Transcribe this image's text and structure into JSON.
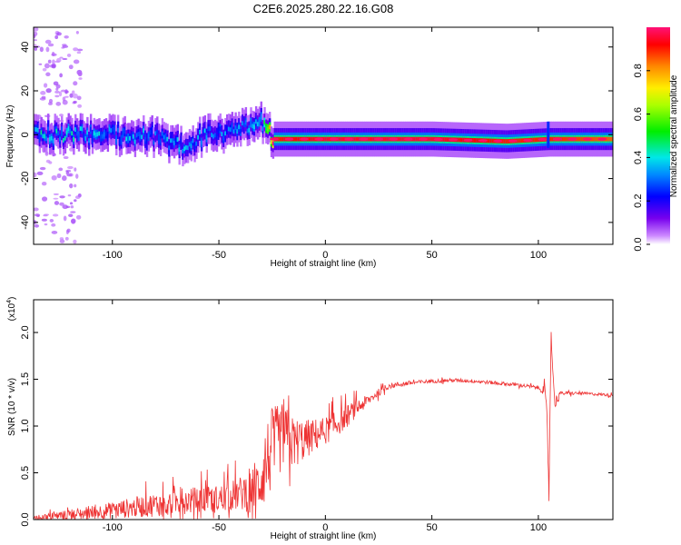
{
  "title": "C2E6.2025.280.22.16.G08",
  "chart_data": [
    {
      "type": "heatmap",
      "title": "C2E6.2025.280.22.16.G08",
      "xlabel": "Height of straight line (km)",
      "ylabel": "Frequency (Hz)",
      "xlim": [
        -137,
        135
      ],
      "ylim": [
        -50,
        49
      ],
      "xticks": [
        -100,
        -50,
        0,
        50,
        100
      ],
      "yticks": [
        -40,
        -20,
        0,
        20,
        40
      ],
      "colorbar": {
        "label": "Normalized spectral amplitude",
        "range": [
          0,
          1
        ],
        "ticks": [
          0.0,
          0.2,
          0.4,
          0.6,
          0.8
        ]
      },
      "ridge": [
        {
          "x": -136,
          "f": 0,
          "amp": 0.35
        },
        {
          "x": -120,
          "f": 0,
          "amp": 0.35
        },
        {
          "x": -100,
          "f": 0,
          "amp": 0.32
        },
        {
          "x": -80,
          "f": -1,
          "amp": 0.3
        },
        {
          "x": -68,
          "f": -5,
          "amp": 0.32
        },
        {
          "x": -55,
          "f": 0,
          "amp": 0.3
        },
        {
          "x": -40,
          "f": 2,
          "amp": 0.3
        },
        {
          "x": -30,
          "f": 6,
          "amp": 0.35
        },
        {
          "x": -25,
          "f": -2,
          "amp": 0.9
        },
        {
          "x": 0,
          "f": -2,
          "amp": 0.95
        },
        {
          "x": 50,
          "f": -2,
          "amp": 0.95
        },
        {
          "x": 85,
          "f": -3,
          "amp": 0.9
        },
        {
          "x": 105,
          "f": -2,
          "amp": 0.9
        },
        {
          "x": 135,
          "f": -2,
          "amp": 0.85
        }
      ]
    },
    {
      "type": "line",
      "xlabel": "Height of straight line (km)",
      "ylabel": "SNR (10 * v/v)",
      "scale_label": "(x10",
      "scale_exp": "4",
      "scale_close": ")",
      "xlim": [
        -137,
        135
      ],
      "ylim": [
        0,
        2.35
      ],
      "xticks": [
        -100,
        -50,
        0,
        50,
        100
      ],
      "yticks": [
        0.0,
        0.5,
        1.0,
        1.5,
        2.0
      ],
      "yticks_text": [
        "0.0",
        "0.5",
        "1.0",
        "1.5",
        "2.0"
      ],
      "series": [
        {
          "name": "SNR",
          "color": "#ee3333",
          "x": [
            -137,
            -120,
            -100,
            -80,
            -65,
            -50,
            -40,
            -32,
            -28,
            -25,
            -20,
            -15,
            -10,
            -5,
            0,
            5,
            10,
            15,
            20,
            25,
            30,
            40,
            50,
            60,
            70,
            80,
            90,
            100,
            103,
            104,
            105,
            106,
            107,
            108,
            110,
            120,
            135
          ],
          "y": [
            0.02,
            0.05,
            0.1,
            0.16,
            0.2,
            0.22,
            0.28,
            0.35,
            0.6,
            0.75,
            0.9,
            0.82,
            0.85,
            0.9,
            0.95,
            1.02,
            1.1,
            1.2,
            1.27,
            1.36,
            1.43,
            1.46,
            1.48,
            1.49,
            1.48,
            1.46,
            1.44,
            1.41,
            1.38,
            1.1,
            0.3,
            2.05,
            1.45,
            1.25,
            1.35,
            1.35,
            1.33
          ],
          "noise": [
            0.02,
            0.06,
            0.09,
            0.13,
            0.14,
            0.15,
            0.18,
            0.3,
            0.45,
            0.45,
            0.35,
            0.28,
            0.22,
            0.18,
            0.15,
            0.14,
            0.12,
            0.09,
            0.06,
            0.04,
            0.03,
            0.025,
            0.02,
            0.02,
            0.02,
            0.02,
            0.02,
            0.02,
            0.06,
            0.1,
            0.1,
            0.1,
            0.1,
            0.08,
            0.02,
            0.015,
            0.015
          ]
        }
      ]
    }
  ]
}
